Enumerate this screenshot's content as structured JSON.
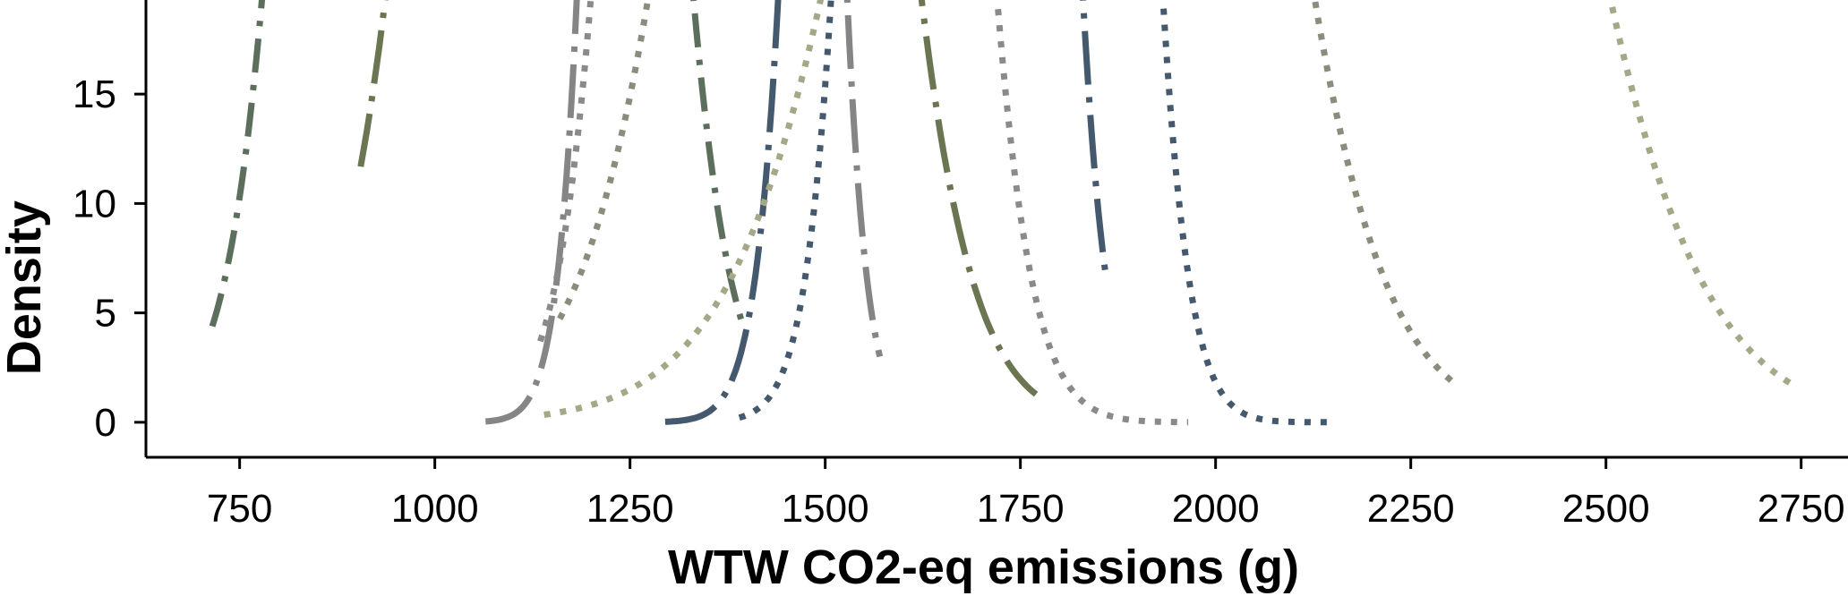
{
  "chart_data": {
    "type": "line",
    "title": "",
    "xlabel": "WTW CO2-eq emissions (g)",
    "ylabel": "Density",
    "xlim": [
      630,
      2810
    ],
    "ylim": [
      -1.6,
      19.3
    ],
    "xticks": [
      750,
      1000,
      1250,
      1500,
      1750,
      2000,
      2250,
      2500,
      2750
    ],
    "yticks": [
      0,
      5,
      10,
      15
    ],
    "grid": false,
    "legend": "none",
    "density_scale": 100000,
    "series": [
      {
        "mean": 1055,
        "sd": 115,
        "range": [
          715,
          1395
        ],
        "color": "#5c6e5c",
        "style": "dashdot"
      },
      {
        "mean": 1280,
        "sd": 150,
        "range": [
          905,
          1770
        ],
        "color": "#6a7552",
        "style": "longdashdot"
      },
      {
        "mean": 1355,
        "sd": 66,
        "range": [
          1065,
          1570
        ],
        "color": "#858585",
        "style": "longdashdot"
      },
      {
        "mean": 1460,
        "sd": 107,
        "range": [
          1135,
          1965
        ],
        "color": "#8a8a8a",
        "style": "dotted"
      },
      {
        "mean": 1635,
        "sd": 76,
        "range": [
          1295,
          1860
        ],
        "color": "#44586e",
        "style": "longdashdot"
      },
      {
        "mean": 1700,
        "sd": 197,
        "range": [
          1160,
          2310
        ],
        "color": "#8c8c7c",
        "style": "dotted"
      },
      {
        "mean": 1720,
        "sd": 84,
        "range": [
          1390,
          2145
        ],
        "color": "#44586e",
        "style": "dotted"
      },
      {
        "mean": 2000,
        "sd": 245,
        "range": [
          1140,
          2745
        ],
        "color": "#a5a887",
        "style": "dotted"
      }
    ]
  }
}
